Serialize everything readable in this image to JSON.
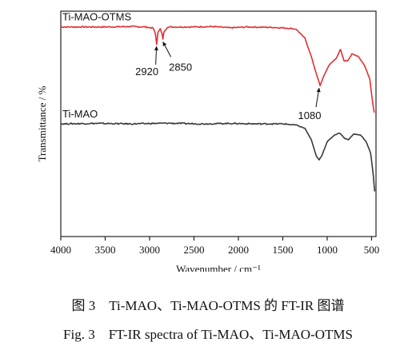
{
  "caption": {
    "cn": "图 3    Ti-MAO、Ti-MAO-OTMS 的 FT-IR 图谱",
    "en": "Fig. 3    FT-IR spectra of Ti-MAO、Ti-MAO-OTMS"
  },
  "chart_data": {
    "type": "line",
    "title": "",
    "xlabel": "Wavenumber / cm⁻¹",
    "ylabel": "Transmittance / %",
    "xlim": [
      4000,
      450
    ],
    "xticks": [
      4000,
      3500,
      3000,
      2500,
      2000,
      1500,
      1000,
      500
    ],
    "ylim": [
      0,
      100
    ],
    "yticks_shown": false,
    "grid": false,
    "legend": "none; series labelled directly on the plot",
    "series": [
      {
        "name": "Ti-MAO-OTMS",
        "color": "#e03030",
        "points": [
          [
            4000,
            93
          ],
          [
            3500,
            93
          ],
          [
            3200,
            93.2
          ],
          [
            3050,
            93
          ],
          [
            2960,
            92.5
          ],
          [
            2935,
            90
          ],
          [
            2920,
            85.5
          ],
          [
            2905,
            90.5
          ],
          [
            2880,
            92.5
          ],
          [
            2860,
            90
          ],
          [
            2850,
            87.5
          ],
          [
            2840,
            90.5
          ],
          [
            2800,
            93
          ],
          [
            2500,
            93
          ],
          [
            2300,
            93.2
          ],
          [
            2100,
            92.6
          ],
          [
            1900,
            93
          ],
          [
            1600,
            92.8
          ],
          [
            1450,
            92.5
          ],
          [
            1350,
            92
          ],
          [
            1250,
            88
          ],
          [
            1180,
            80
          ],
          [
            1120,
            72
          ],
          [
            1080,
            67
          ],
          [
            1040,
            71
          ],
          [
            980,
            76
          ],
          [
            900,
            79
          ],
          [
            850,
            83
          ],
          [
            810,
            78
          ],
          [
            770,
            78
          ],
          [
            720,
            81
          ],
          [
            650,
            80
          ],
          [
            580,
            76
          ],
          [
            520,
            70
          ],
          [
            490,
            60
          ],
          [
            470,
            55
          ]
        ]
      },
      {
        "name": "Ti-MAO",
        "color": "#3a3a3a",
        "points": [
          [
            4000,
            50
          ],
          [
            3600,
            50.2
          ],
          [
            3200,
            50
          ],
          [
            2800,
            50.3
          ],
          [
            2400,
            50
          ],
          [
            2100,
            50.2
          ],
          [
            1800,
            50
          ],
          [
            1500,
            50
          ],
          [
            1350,
            49.5
          ],
          [
            1250,
            48
          ],
          [
            1180,
            43
          ],
          [
            1120,
            35.5
          ],
          [
            1090,
            34
          ],
          [
            1060,
            36
          ],
          [
            1000,
            42
          ],
          [
            920,
            45
          ],
          [
            860,
            46
          ],
          [
            800,
            43.5
          ],
          [
            760,
            43
          ],
          [
            700,
            45.5
          ],
          [
            620,
            45
          ],
          [
            560,
            42
          ],
          [
            510,
            37
          ],
          [
            480,
            27
          ],
          [
            465,
            20
          ]
        ]
      }
    ],
    "annotations": [
      {
        "text": "2920",
        "x": 2920
      },
      {
        "text": "2850",
        "x": 2850
      },
      {
        "text": "1080",
        "x": 1080
      }
    ]
  }
}
